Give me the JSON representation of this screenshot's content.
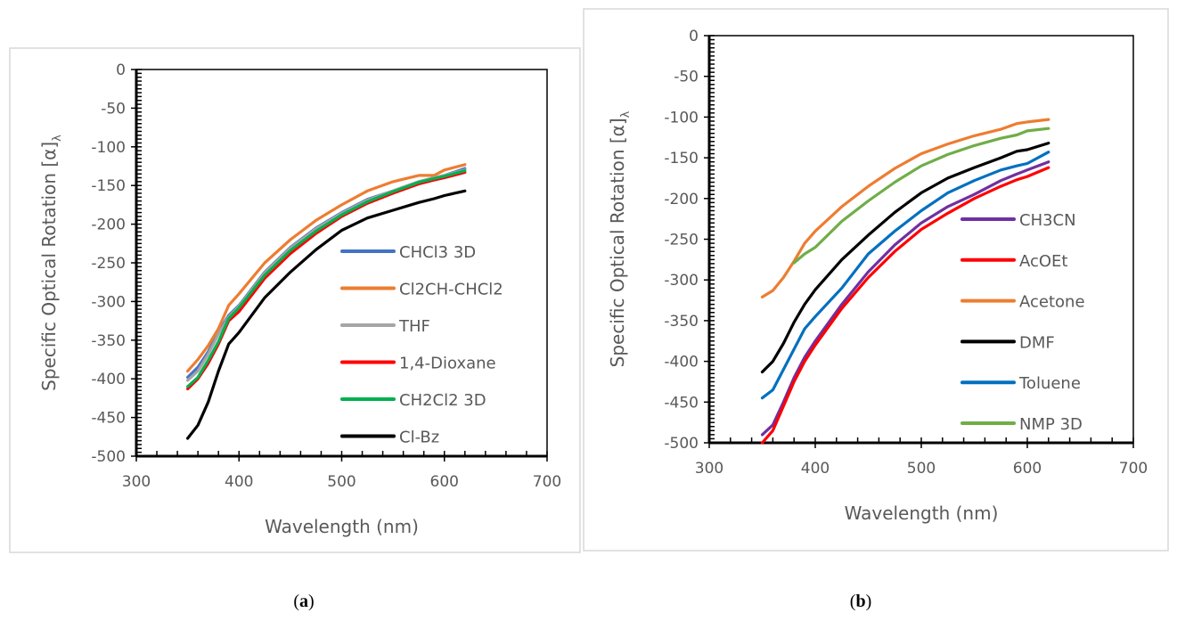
{
  "chart_data": [
    {
      "type": "line",
      "panel_label": "a",
      "xlabel": "Wavelength (nm)",
      "ylabel": "Specific Optical Rotation [α]",
      "ylabel_subscript": "λ",
      "xlim": [
        300,
        700
      ],
      "ylim": [
        -500,
        0
      ],
      "xticks": [
        "300",
        "400",
        "500",
        "600",
        "700"
      ],
      "yticks": [
        "0",
        "-50",
        "-100",
        "-150",
        "-200",
        "-250",
        "-300",
        "-350",
        "-400",
        "-450",
        "-500"
      ],
      "grid": false,
      "legend_position": "inside-lower-right",
      "x": [
        350,
        360,
        370,
        380,
        390,
        400,
        425,
        450,
        475,
        500,
        525,
        550,
        575,
        590,
        600,
        620
      ],
      "series": [
        {
          "name": "CHCl3 3D",
          "color": "#4472c4",
          "values": [
            -398,
            -385,
            -365,
            -340,
            -318,
            -305,
            -262,
            -230,
            -205,
            -185,
            -168,
            -157,
            -145,
            -140,
            -137,
            -128
          ]
        },
        {
          "name": "Cl2CH-CHCl2",
          "color": "#ed7d31",
          "values": [
            -390,
            -375,
            -357,
            -335,
            -305,
            -290,
            -250,
            -220,
            -195,
            -175,
            -157,
            -145,
            -137,
            -137,
            -130,
            -123
          ]
        },
        {
          "name": "THF",
          "color": "#a5a5a5",
          "values": [
            -402,
            -390,
            -368,
            -342,
            -320,
            -306,
            -263,
            -231,
            -206,
            -186,
            -169,
            -157,
            -145,
            -140,
            -137,
            -130
          ]
        },
        {
          "name": "1,4-Dioxane",
          "color": "#ff0000",
          "values": [
            -413,
            -400,
            -380,
            -355,
            -325,
            -313,
            -270,
            -238,
            -212,
            -190,
            -173,
            -160,
            -148,
            -143,
            -140,
            -133
          ]
        },
        {
          "name": "CH2Cl2 3D",
          "color": "#00b050",
          "values": [
            -410,
            -398,
            -376,
            -352,
            -322,
            -308,
            -266,
            -234,
            -209,
            -188,
            -171,
            -158,
            -146,
            -141,
            -138,
            -131
          ]
        },
        {
          "name": "Cl-Bz",
          "color": "#000000",
          "values": [
            -477,
            -460,
            -430,
            -390,
            -355,
            -340,
            -295,
            -262,
            -233,
            -208,
            -192,
            -182,
            -172,
            -167,
            -163,
            -157
          ]
        }
      ]
    },
    {
      "type": "line",
      "panel_label": "b",
      "xlabel": "Wavelength (nm)",
      "ylabel": "Specific Optical Rotation [α]",
      "ylabel_subscript": "λ",
      "xlim": [
        300,
        700
      ],
      "ylim": [
        -500,
        0
      ],
      "xticks": [
        "300",
        "400",
        "500",
        "600",
        "700"
      ],
      "yticks": [
        "0",
        "-50",
        "-100",
        "-150",
        "-200",
        "-250",
        "-300",
        "-350",
        "-400",
        "-450",
        "-500"
      ],
      "grid": false,
      "legend_position": "inside-lower-right",
      "x": [
        350,
        360,
        370,
        380,
        390,
        400,
        425,
        450,
        475,
        500,
        525,
        550,
        575,
        590,
        600,
        620
      ],
      "series": [
        {
          "name": "CH3CN",
          "color": "#7030a0",
          "values": [
            -490,
            -478,
            -450,
            -420,
            -395,
            -375,
            -330,
            -290,
            -257,
            -230,
            -210,
            -195,
            -178,
            -170,
            -165,
            -155
          ]
        },
        {
          "name": "AcOEt",
          "color": "#ff0000",
          "values": [
            -500,
            -485,
            -455,
            -425,
            -400,
            -380,
            -335,
            -297,
            -265,
            -238,
            -218,
            -200,
            -185,
            -177,
            -173,
            -162
          ]
        },
        {
          "name": "Acetone",
          "color": "#ed7d31",
          "values": [
            -321,
            -313,
            -297,
            -277,
            -255,
            -240,
            -210,
            -185,
            -163,
            -145,
            -133,
            -123,
            -115,
            -108,
            -106,
            -103
          ]
        },
        {
          "name": "DMF",
          "color": "#000000",
          "values": [
            -413,
            -400,
            -378,
            -352,
            -330,
            -312,
            -275,
            -245,
            -217,
            -193,
            -175,
            -162,
            -150,
            -142,
            -140,
            -132
          ]
        },
        {
          "name": "Toluene",
          "color": "#0070c0",
          "values": [
            -445,
            -435,
            -410,
            -385,
            -360,
            -345,
            -310,
            -268,
            -240,
            -215,
            -193,
            -178,
            -165,
            -160,
            -157,
            -143
          ]
        },
        {
          "name": "NMP 3D",
          "color": "#70ad47",
          "values": [
            null,
            null,
            null,
            -279,
            -268,
            -260,
            -228,
            -203,
            -180,
            -160,
            -146,
            -135,
            -126,
            -122,
            -117,
            -114
          ]
        }
      ]
    }
  ]
}
